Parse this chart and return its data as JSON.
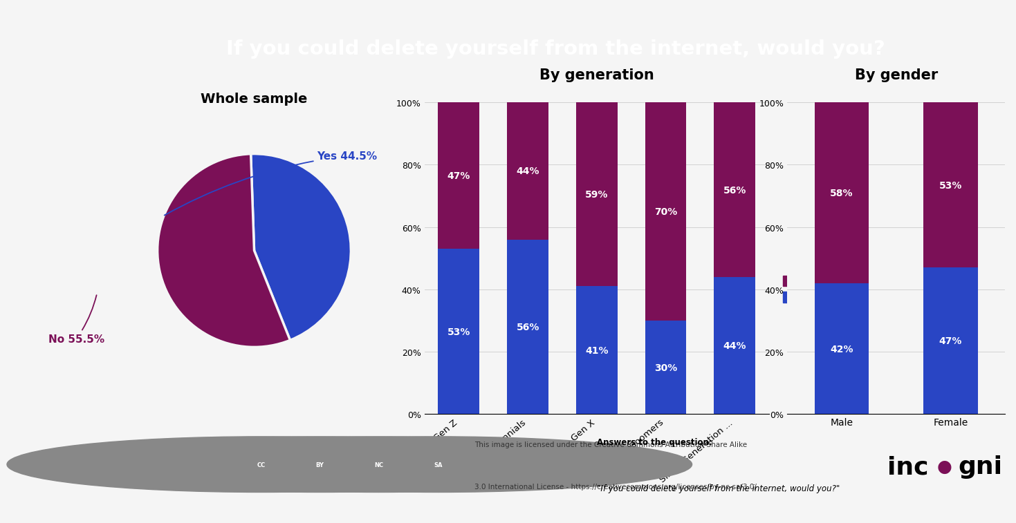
{
  "title": "If you could delete yourself from the internet, would you?",
  "title_bg_color": "#0e1f6b",
  "title_text_color": "#ffffff",
  "bg_color": "#f5f5f5",
  "yes_color": "#2945c4",
  "no_color": "#7b1057",
  "pie_yes": 44.5,
  "pie_no": 55.5,
  "pie_title": "Whole sample",
  "gen_title": "By generation",
  "gender_title": "By gender",
  "gen_categories": [
    "Gen Z",
    "Gen Y/ Millennials",
    "Gen X",
    "Baby Boomers",
    "Silent Generation ..."
  ],
  "gen_yes": [
    53,
    56,
    41,
    30,
    44
  ],
  "gen_no": [
    47,
    44,
    59,
    70,
    56
  ],
  "gender_categories": [
    "Male",
    "Female"
  ],
  "gender_yes": [
    42,
    47
  ],
  "gender_no": [
    58,
    53
  ],
  "footer_license1": "This image is licensed under the Creative Commons Attribution-Share Alike",
  "footer_license2": "3.0 International License - https://creativecommons.org/licenses/by-nc-sa/3.0/",
  "footer_answer1": "Answers to the question:",
  "footer_answer2": "\"If you could delete yourself from the internet, would you?\""
}
